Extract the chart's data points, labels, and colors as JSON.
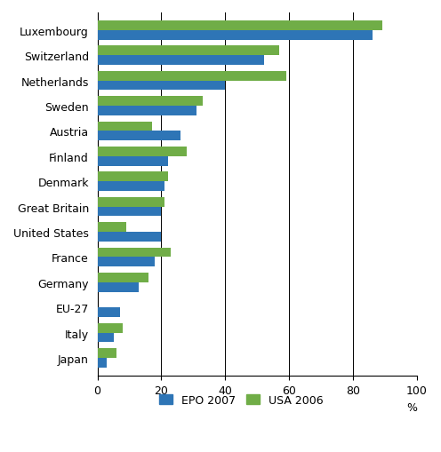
{
  "categories": [
    "Luxembourg",
    "Switzerland",
    "Netherlands",
    "Sweden",
    "Austria",
    "Finland",
    "Denmark",
    "Great Britain",
    "United States",
    "France",
    "Germany",
    "EU-27",
    "Italy",
    "Japan"
  ],
  "epo_2007": [
    86,
    52,
    40,
    31,
    26,
    22,
    21,
    20,
    20,
    18,
    13,
    7,
    5,
    3
  ],
  "usa_2006": [
    89,
    57,
    59,
    33,
    17,
    28,
    22,
    21,
    9,
    23,
    16,
    0,
    8,
    6
  ],
  "epo_color": "#2E75B6",
  "usa_color": "#70AD47",
  "xlim": [
    0,
    100
  ],
  "xticks": [
    0,
    20,
    40,
    60,
    80,
    100
  ],
  "xlabel": "%",
  "legend_labels": [
    "EPO 2007",
    "USA 2006"
  ],
  "bar_height": 0.38,
  "background_color": "#FFFFFF",
  "grid_color": "#000000",
  "font_size_tick": 9,
  "font_size_legend": 9,
  "font_size_xlabel": 9
}
